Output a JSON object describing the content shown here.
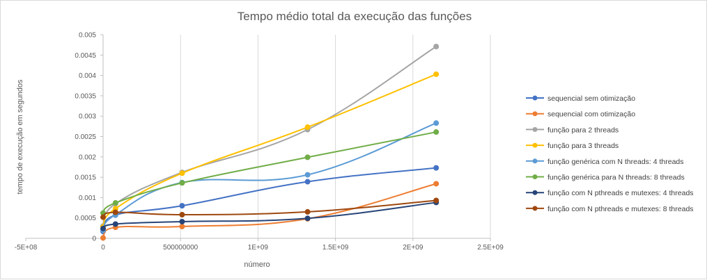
{
  "chart_data": {
    "type": "scatter",
    "title": "Tempo médio total da execução das funções",
    "xlabel": "número",
    "ylabel": "tempo de execução em segundos",
    "xlim": [
      -500000000,
      2500000000
    ],
    "ylim": [
      0,
      0.005
    ],
    "x_tick_values": [
      -500000000,
      0,
      500000000,
      1000000000,
      1500000000,
      2000000000,
      2500000000
    ],
    "x_tick_labels": [
      "-5E+08",
      "0",
      "500000000",
      "1E+09",
      "1.5E+09",
      "2E+09",
      "2.5E+09"
    ],
    "y_tick_values": [
      0,
      0.0005,
      0.001,
      0.0015,
      0.002,
      0.0025,
      0.003,
      0.0035,
      0.004,
      0.0045,
      0.005
    ],
    "y_tick_labels": [
      "0",
      "0.0005",
      "0.001",
      "0.0015",
      "0.002",
      "0.0025",
      "0.003",
      "0.0035",
      "0.004",
      "0.0045",
      "0.005"
    ],
    "grid": "vertical",
    "legend_position": "right",
    "series": [
      {
        "name": "sequencial sem otimização",
        "color": "#4472c4",
        "points": [
          [
            0,
            0.00017
          ],
          [
            80000000,
            0.00057
          ],
          [
            510000000,
            0.0008
          ],
          [
            1320000000,
            0.00139
          ],
          [
            2150000000,
            0.00173
          ]
        ]
      },
      {
        "name": "sequencial com otimização",
        "color": "#ed7d31",
        "points": [
          [
            0,
            1e-05
          ],
          [
            80000000,
            0.00027
          ],
          [
            510000000,
            0.00029
          ],
          [
            1320000000,
            0.00048
          ],
          [
            2150000000,
            0.00134
          ]
        ]
      },
      {
        "name": "função para 2 threads",
        "color": "#a5a5a5",
        "points": [
          [
            0,
            0.0003
          ],
          [
            80000000,
            0.00085
          ],
          [
            510000000,
            0.00162
          ],
          [
            1320000000,
            0.00267
          ],
          [
            2150000000,
            0.00471
          ]
        ]
      },
      {
        "name": "função para 3 threads",
        "color": "#ffc000",
        "points": [
          [
            0,
            0.00028
          ],
          [
            80000000,
            0.00073
          ],
          [
            510000000,
            0.0016
          ],
          [
            1320000000,
            0.00273
          ],
          [
            2150000000,
            0.00403
          ]
        ]
      },
      {
        "name": "função genérica com N threads: 4 threads",
        "color": "#5b9bd5",
        "points": [
          [
            0,
            0.0002
          ],
          [
            80000000,
            0.00058
          ],
          [
            510000000,
            0.00137
          ],
          [
            1320000000,
            0.00156
          ],
          [
            2150000000,
            0.00283
          ]
        ]
      },
      {
        "name": "função genérica para N threads: 8 threads",
        "color": "#70ad47",
        "points": [
          [
            0,
            0.00062
          ],
          [
            80000000,
            0.00087
          ],
          [
            510000000,
            0.00136
          ],
          [
            1320000000,
            0.00199
          ],
          [
            2150000000,
            0.00261
          ]
        ]
      },
      {
        "name": "função com N pthreads e mutexes: 4 threads",
        "color": "#264478",
        "points": [
          [
            0,
            0.00024
          ],
          [
            80000000,
            0.00035
          ],
          [
            510000000,
            0.00041
          ],
          [
            1320000000,
            0.00049
          ],
          [
            2150000000,
            0.00088
          ]
        ]
      },
      {
        "name": "função com N pthreads e mutexes: 8 threads",
        "color": "#9e480e",
        "points": [
          [
            0,
            0.00052
          ],
          [
            80000000,
            0.00064
          ],
          [
            510000000,
            0.00058
          ],
          [
            1320000000,
            0.00065
          ],
          [
            2150000000,
            0.00093
          ]
        ]
      }
    ]
  }
}
